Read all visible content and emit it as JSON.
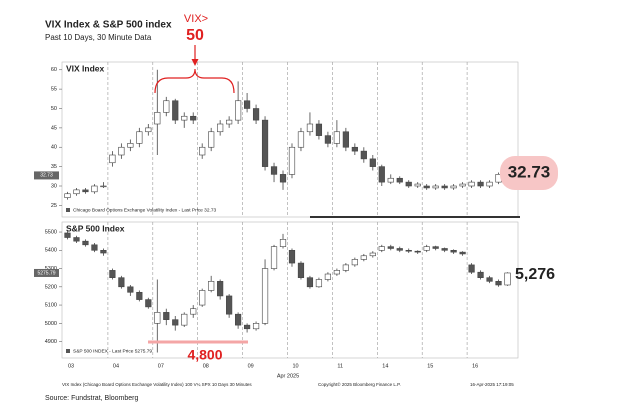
{
  "title": "VIX Index & S&P 500 index",
  "subtitle": "Past 10 Days, 30 Minute Data",
  "footer": {
    "left": "VIX Index (Chicago Board Options Exchange Volatility Index) 100 V¼ SPX 10 Days 30 Minutes",
    "middle": "Copyright© 2025 Bloomberg Finance L.P.",
    "right": "16-Apr-2025 17:19:05",
    "source": "Source: Fundstrat, Bloomberg"
  },
  "chart_data": [
    {
      "type": "candlestick",
      "panel_title": "VIX Index",
      "legend": "Chicago Board Options Exchange Volatility Index - Last Price 32.73",
      "up_color": "#ffffff",
      "down_color": "#555555",
      "last_value": 32.73,
      "callout": "32.73",
      "callout_color": "#f7c6c6",
      "annotation_title": "VIX>",
      "annotation_level": 50,
      "annotation_color": "#e02020",
      "ylim": [
        22,
        62
      ],
      "yticks": [
        25,
        30,
        35,
        40,
        45,
        50,
        55,
        60
      ],
      "x_labels": [
        "03",
        "04",
        "07",
        "08",
        "09",
        "10",
        "11",
        "14",
        "15",
        "16"
      ],
      "open": [
        27,
        28,
        29,
        28.5,
        30,
        36,
        38,
        40,
        41,
        44,
        46,
        49,
        52,
        47,
        48,
        38,
        40,
        44,
        46,
        47,
        52,
        50,
        47,
        35,
        33,
        33,
        40,
        44,
        46,
        43,
        41,
        44,
        40,
        39,
        37,
        35,
        31,
        32,
        31,
        30,
        30,
        29.5,
        30,
        29.5,
        30,
        30,
        31,
        30,
        31,
        33
      ],
      "close": [
        28,
        29,
        28.5,
        30,
        30,
        38,
        40,
        41,
        44,
        45,
        49,
        52,
        47,
        48,
        47,
        40,
        44,
        46,
        47,
        52,
        50,
        47,
        35,
        33,
        31,
        40,
        44,
        46,
        43,
        41,
        44,
        40,
        39,
        37,
        35,
        31,
        32,
        31,
        30,
        30.5,
        29.5,
        30,
        29.5,
        30,
        30.5,
        31,
        30,
        31,
        33,
        32.73
      ],
      "high": [
        28.5,
        29.5,
        29.5,
        30.5,
        31,
        39,
        41,
        42,
        45,
        46,
        60,
        53,
        52.5,
        49,
        49,
        41,
        45,
        47,
        48,
        57,
        54,
        51,
        48,
        36,
        34,
        41,
        45,
        49,
        47,
        44,
        47,
        45,
        41,
        40,
        38,
        35.5,
        33,
        32.5,
        31.5,
        31,
        30.5,
        30.5,
        30.5,
        30.5,
        31,
        31.5,
        31.5,
        31.5,
        33.5,
        34
      ],
      "low": [
        26.5,
        27.5,
        28,
        28,
        29.5,
        35,
        37,
        39,
        40,
        43,
        38,
        48,
        46,
        45,
        46,
        37,
        39,
        43,
        45,
        46,
        49,
        46,
        34,
        31,
        29,
        32,
        39,
        43,
        42,
        40,
        40,
        39,
        38,
        36,
        34,
        30,
        30.5,
        30.5,
        29.5,
        29.5,
        29,
        29,
        29,
        29,
        29.5,
        29.5,
        29.5,
        29.5,
        30.5,
        32
      ]
    },
    {
      "type": "candlestick",
      "panel_title": "S&P 500 Index",
      "legend": "S&P 500 INDEX - Last Price 5275.79",
      "up_color": "#ffffff",
      "down_color": "#555555",
      "last_value": 5275.79,
      "callout": "5,276",
      "annotation_level": {
        "value": 4800,
        "label": "4,800"
      },
      "annotation_color": "#e02020",
      "ylim": [
        4810,
        5555
      ],
      "yticks": [
        4900,
        5000,
        5100,
        5200,
        5300,
        5400,
        5500
      ],
      "x_labels": [
        "03",
        "04",
        "07",
        "08",
        "09",
        "10",
        "11",
        "14",
        "15",
        "16"
      ],
      "x_sublabel": "Apr 2025",
      "open": [
        5495,
        5470,
        5450,
        5430,
        5400,
        5290,
        5250,
        5200,
        5170,
        5130,
        5000,
        5060,
        5020,
        4990,
        5050,
        5100,
        5180,
        5230,
        5150,
        5050,
        4990,
        4970,
        5000,
        5300,
        5420,
        5400,
        5330,
        5250,
        5200,
        5240,
        5270,
        5290,
        5320,
        5350,
        5370,
        5400,
        5420,
        5410,
        5400,
        5395,
        5400,
        5420,
        5410,
        5400,
        5390,
        5320,
        5280,
        5250,
        5230,
        5210
      ],
      "close": [
        5470,
        5450,
        5430,
        5400,
        5385,
        5250,
        5200,
        5170,
        5130,
        5090,
        5060,
        5020,
        4990,
        5050,
        5080,
        5180,
        5230,
        5150,
        5050,
        4990,
        4970,
        5000,
        5300,
        5420,
        5460,
        5330,
        5250,
        5200,
        5240,
        5270,
        5290,
        5320,
        5350,
        5370,
        5385,
        5420,
        5410,
        5400,
        5395,
        5390,
        5420,
        5410,
        5400,
        5390,
        5380,
        5280,
        5250,
        5230,
        5210,
        5275.79
      ],
      "high": [
        5505,
        5480,
        5460,
        5440,
        5410,
        5300,
        5260,
        5210,
        5180,
        5140,
        5240,
        5080,
        5040,
        5060,
        5100,
        5190,
        5260,
        5240,
        5160,
        5060,
        5000,
        5010,
        5350,
        5430,
        5490,
        5410,
        5340,
        5260,
        5250,
        5280,
        5300,
        5330,
        5360,
        5380,
        5395,
        5430,
        5430,
        5420,
        5410,
        5400,
        5430,
        5425,
        5415,
        5405,
        5395,
        5330,
        5290,
        5260,
        5240,
        5280
      ],
      "low": [
        5460,
        5440,
        5420,
        5390,
        5370,
        5240,
        5190,
        5150,
        5120,
        5080,
        4840,
        4990,
        4960,
        4980,
        5030,
        5090,
        5170,
        5130,
        5030,
        4970,
        4950,
        4960,
        4990,
        5290,
        5410,
        5310,
        5240,
        5190,
        5195,
        5230,
        5260,
        5280,
        5310,
        5340,
        5360,
        5390,
        5400,
        5390,
        5385,
        5380,
        5390,
        5400,
        5390,
        5380,
        5370,
        5270,
        5240,
        5220,
        5200,
        5205
      ]
    }
  ]
}
